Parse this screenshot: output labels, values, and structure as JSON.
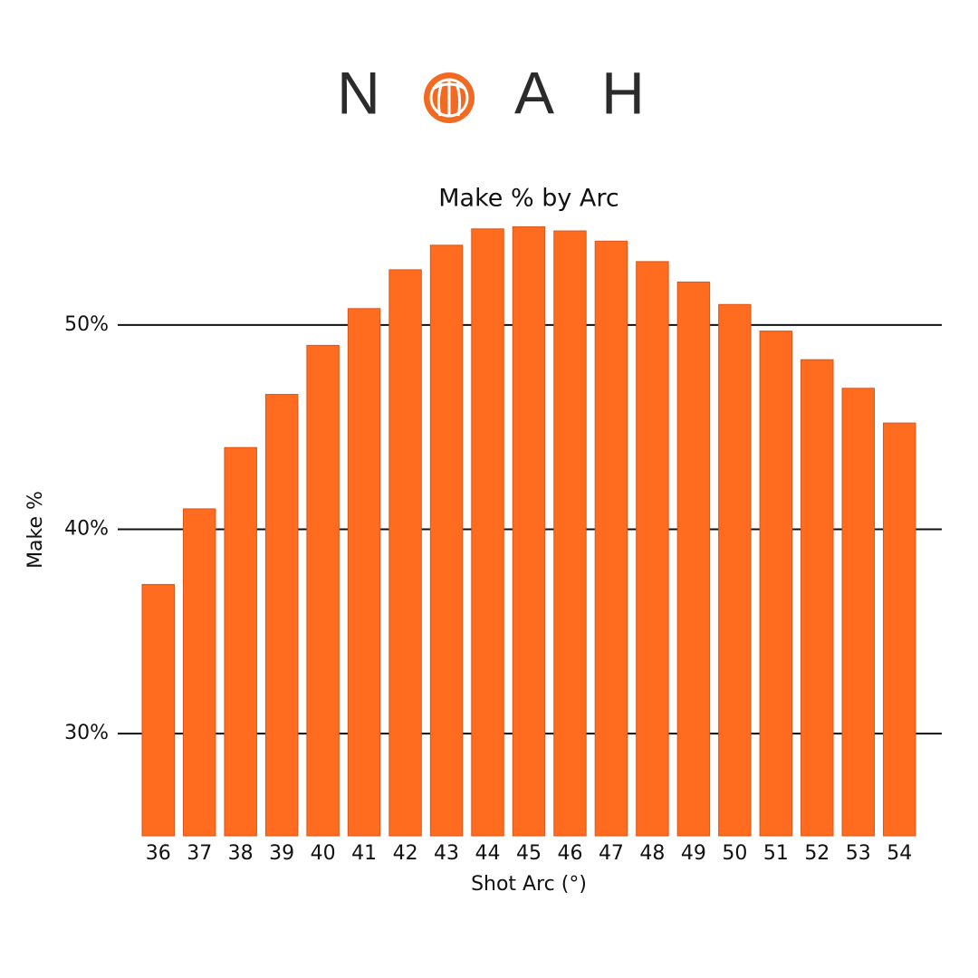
{
  "logo": [
    "N",
    "A",
    "H"
  ],
  "chart_data": {
    "type": "bar",
    "title": "Make % by Arc",
    "x_label": "Shot Arc (°)",
    "y_label": "Make %",
    "categories": [
      "36",
      "37",
      "38",
      "39",
      "40",
      "41",
      "42",
      "43",
      "44",
      "45",
      "46",
      "47",
      "48",
      "49",
      "50",
      "51",
      "52",
      "53",
      "54"
    ],
    "values": [
      37.3,
      41.0,
      44.0,
      46.6,
      49.0,
      50.8,
      52.7,
      53.9,
      54.7,
      54.8,
      54.6,
      54.1,
      53.1,
      52.1,
      51.0,
      49.7,
      48.3,
      46.9,
      45.2
    ],
    "color": "#ff6b1f",
    "ylim": [
      25,
      55
    ],
    "yticks": [
      {
        "value": 30,
        "label": "30%"
      },
      {
        "value": 40,
        "label": "40%"
      },
      {
        "value": 50,
        "label": "50%"
      }
    ],
    "grid": true
  }
}
